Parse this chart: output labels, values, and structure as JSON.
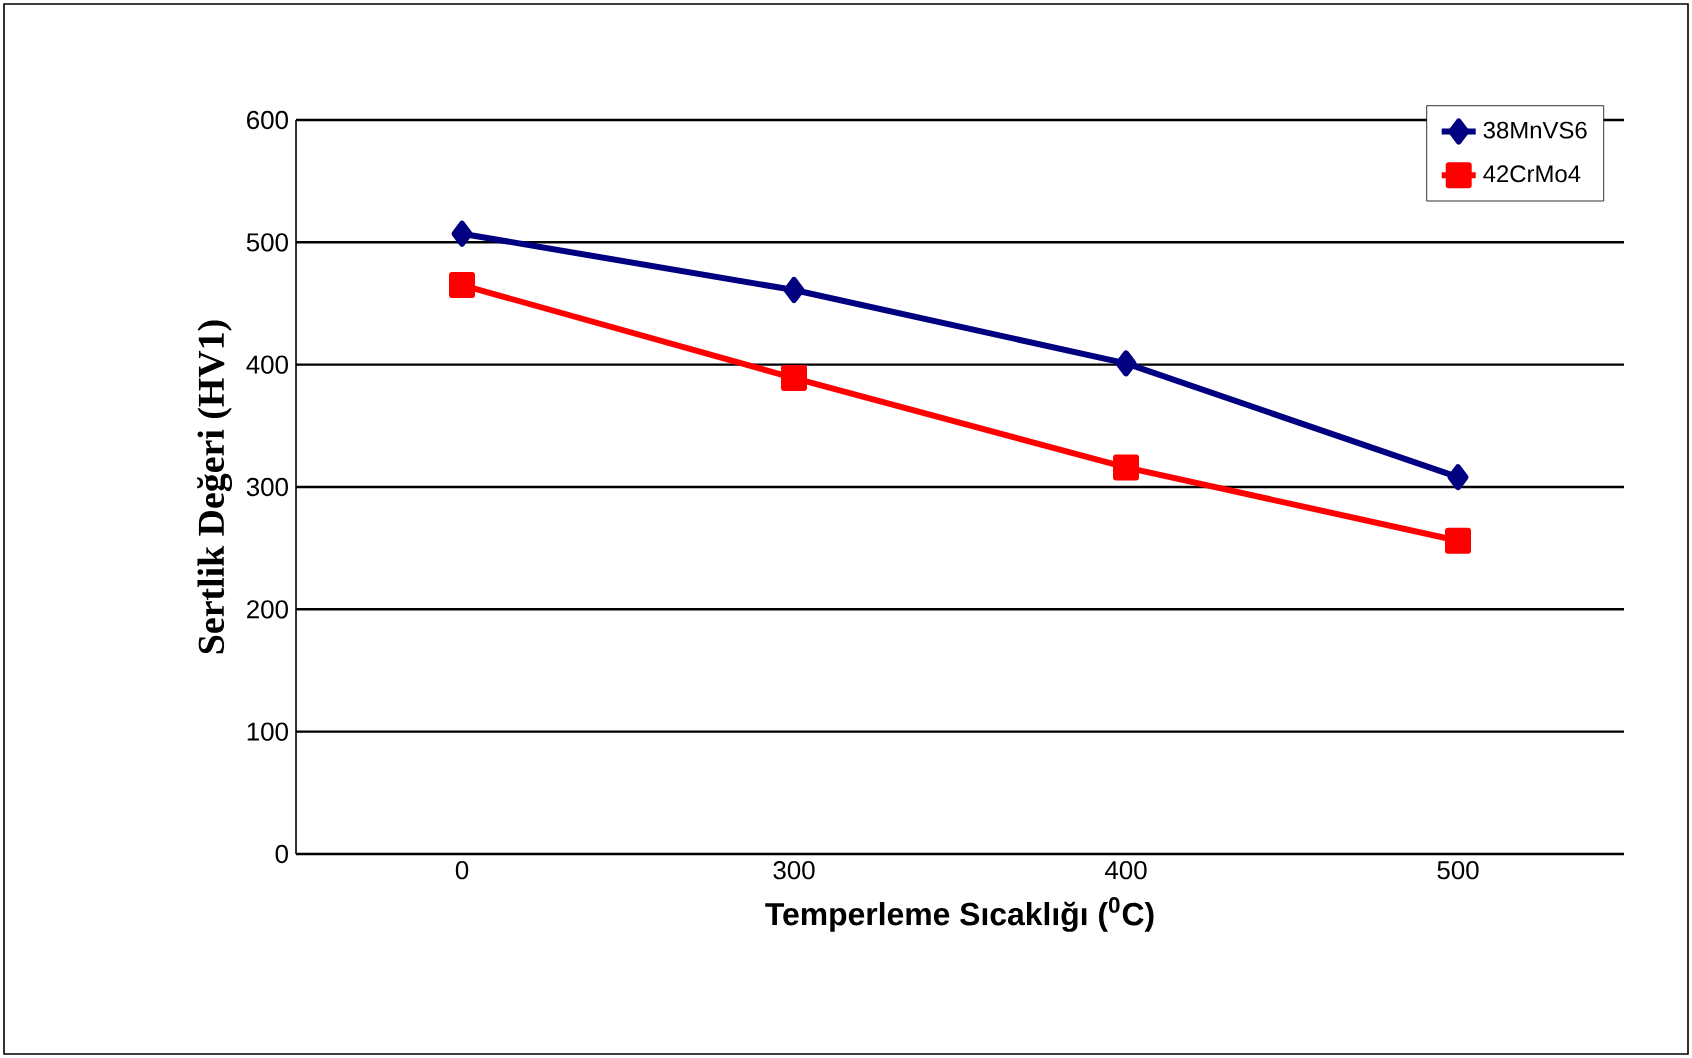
{
  "chart_data": {
    "type": "line",
    "xlabel": "Temperleme Sıcaklığı ($^{0}$C)",
    "ylabel": "Sertlik Değeri (HV1)",
    "categories": [
      "0",
      "300",
      "400",
      "500"
    ],
    "series": [
      {
        "name": "38MnVS6",
        "color": "#000080",
        "marker": "diamond",
        "values": [
          507,
          461,
          401,
          308
        ]
      },
      {
        "name": "42CrMo4",
        "color": "#ff0000",
        "marker": "square",
        "values": [
          465,
          389,
          316,
          256
        ]
      }
    ],
    "ylim": [
      0,
      600
    ],
    "yticks": [
      0,
      100,
      200,
      300,
      400,
      500,
      600
    ],
    "grid": "y",
    "legend": "top right",
    "line_style": "solid"
  }
}
